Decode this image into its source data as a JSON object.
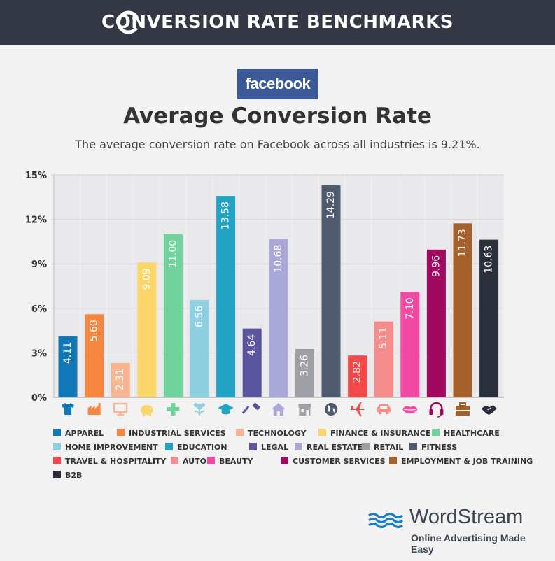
{
  "banner": {
    "title": "CONVERSION RATE BENCHMARKS"
  },
  "logo_text": "facebook",
  "heading": "Average Conversion Rate",
  "subtitle": "The average conversion rate on Facebook across all industries is 9.21%.",
  "chart_data": {
    "type": "bar",
    "categories": [
      "APPAREL",
      "INDUSTRIAL SERVICES",
      "TECHNOLOGY",
      "FINANCE & INSURANCE",
      "HEALTHCARE",
      "HOME IMPROVEMENT",
      "EDUCATION",
      "LEGAL",
      "REAL ESTATE",
      "RETAIL",
      "FITNESS",
      "TRAVEL & HOSPITALITY",
      "AUTO",
      "BEAUTY",
      "CUSTOMER SERVICES",
      "EMPLOYMENT & JOB TRAINING",
      "B2B"
    ],
    "values": [
      4.11,
      5.6,
      2.31,
      9.09,
      11.0,
      6.56,
      13.58,
      4.64,
      10.68,
      3.26,
      14.29,
      2.82,
      5.11,
      7.1,
      9.96,
      11.73,
      10.63
    ],
    "value_labels": [
      "4.11",
      "5.60",
      "2.31",
      "9.09",
      "11.00",
      "6.56",
      "13.58",
      "4.64",
      "10.68",
      "3.26",
      "14.29",
      "2.82",
      "5.11",
      "7.10",
      "9.96",
      "11.73",
      "10.63"
    ],
    "colors": [
      "#1277b7",
      "#f6853d",
      "#f7b592",
      "#f9d56a",
      "#6fd39b",
      "#8fd0e0",
      "#22a3c4",
      "#5a559e",
      "#aaa8d8",
      "#9fa0a6",
      "#4f5a6e",
      "#f14a48",
      "#f48c8c",
      "#f14aa3",
      "#a1085f",
      "#a8602a",
      "#2b2f3c"
    ],
    "icons": [
      "shirt-icon",
      "factory-icon",
      "monitor-icon",
      "piggy-bank-icon",
      "medical-cross-icon",
      "flower-icon",
      "graduation-cap-icon",
      "gavel-icon",
      "house-icon",
      "storefront-icon",
      "globe-icon",
      "airplane-icon",
      "car-icon",
      "lips-icon",
      "headset-icon",
      "briefcase-icon",
      "handshake-icon"
    ],
    "yticks": [
      "0%",
      "3%",
      "6%",
      "9%",
      "12%",
      "15%"
    ],
    "ylim": [
      0,
      15
    ],
    "ytick_values": [
      0,
      3,
      6,
      9,
      12,
      15
    ],
    "title": "Average Conversion Rate",
    "xlabel": "",
    "ylabel": "",
    "legend_placement": "bottom"
  },
  "footer": {
    "brand": "WordStream",
    "tagline": "Online Advertising Made Easy",
    "brand_color": "#1a7dc4"
  }
}
